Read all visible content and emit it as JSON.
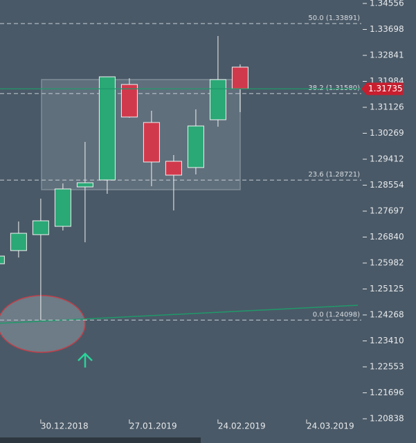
{
  "chart_data": {
    "type": "candlestick",
    "open": [
      1.25959,
      1.26394,
      1.2692,
      1.27194,
      1.28497,
      1.28726,
      1.31881,
      1.30624,
      1.29343,
      1.29137,
      1.30715,
      1.32453
    ],
    "high": [
      1.26211,
      1.27354,
      1.28109,
      1.28612,
      1.29983,
      1.32133,
      1.32087,
      1.31012,
      1.29549,
      1.31058,
      1.33481,
      1.32544
    ],
    "low": [
      1.25959,
      1.26165,
      1.24098,
      1.27057,
      1.26668,
      1.28269,
      1.30783,
      1.2852,
      1.2772,
      1.28909,
      1.30486,
      1.30966
    ],
    "close": [
      1.26211,
      1.26965,
      1.27377,
      1.28429,
      1.28634,
      1.32133,
      1.30806,
      1.2932,
      1.28886,
      1.30509,
      1.32041,
      1.31735
    ],
    "up_color": "#2aa876",
    "down_color": "#d0394c",
    "xlim": [
      0.16,
      16.47
    ],
    "xticks": [
      {
        "value": 2,
        "label": "30.12.2018"
      },
      {
        "value": 6,
        "label": "27.01.2019"
      },
      {
        "value": 10,
        "label": "24.02.2019"
      },
      {
        "value": 14,
        "label": "24.03.2019"
      }
    ],
    "ylim": [
      1.20838,
      1.34556
    ],
    "yticks": [
      1.34556,
      1.33698,
      1.32841,
      1.31984,
      1.31126,
      1.30269,
      1.29412,
      1.28554,
      1.27697,
      {
        "value": 1.2684,
        "label": "1.26840"
      },
      1.25982,
      1.25125,
      1.24268,
      {
        "value": 1.2341,
        "label": "1.23410"
      },
      1.22553,
      1.21696,
      1.20838
    ],
    "fib_levels": [
      {
        "value": 1.33891,
        "label": "50.0 (1.33891)"
      },
      {
        "value": 1.3158,
        "label": "38.2 (1.31580)"
      },
      {
        "value": 1.28721,
        "label": "23.6 (1.28721)"
      },
      {
        "value": 1.24098,
        "label": "0.0 (1.24098)"
      }
    ],
    "last_price": 1.31735
  }
}
